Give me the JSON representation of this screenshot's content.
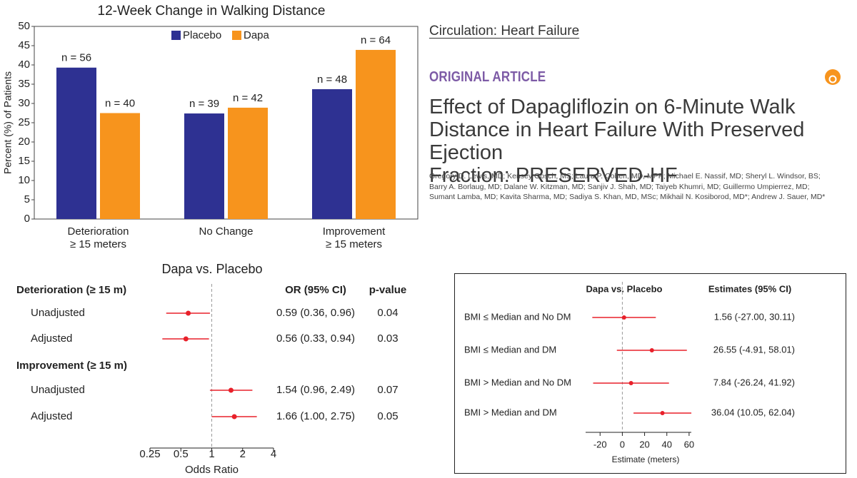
{
  "chart_data": [
    {
      "type": "bar",
      "title": "12-Week Change in Walking Distance",
      "y_label": "Percent (%) of Patients",
      "categories": [
        "Deterioration\n≥ 15  meters",
        "No Change",
        "Improvement\n≥ 15  meters"
      ],
      "series": [
        {
          "name": "Placebo",
          "color": "#2e3192",
          "values": [
            39.3,
            27.4,
            33.7
          ],
          "n_labels": [
            "n = 56",
            "n = 39",
            "n = 48"
          ]
        },
        {
          "name": "Dapa",
          "color": "#f7941d",
          "values": [
            27.5,
            28.9,
            43.9
          ],
          "n_labels": [
            "n = 40",
            "n = 42",
            "n = 64"
          ]
        }
      ],
      "ylim": [
        0,
        50
      ],
      "yticks": [
        0,
        5,
        10,
        15,
        20,
        25,
        30,
        35,
        40,
        45,
        50
      ],
      "legend": "top"
    },
    {
      "type": "forest",
      "title": "Dapa vs. Placebo",
      "estimate_header": "OR (95% CI)",
      "p_header": "p-value",
      "x_label": "Odds Ratio",
      "xscale": "log",
      "xlim": [
        0.25,
        4
      ],
      "xticks": [
        0.25,
        0.5,
        1,
        2,
        4
      ],
      "ref_line": 1,
      "color": "#e8202a",
      "groups": [
        {
          "label": "Deterioration (≥ 15 m)",
          "rows": [
            {
              "label": "Unadjusted",
              "estimate": 0.59,
              "lo": 0.36,
              "hi": 0.96,
              "ci_label": "0.59 (0.36, 0.96)",
              "p": 0.04
            },
            {
              "label": "Adjusted",
              "estimate": 0.56,
              "lo": 0.33,
              "hi": 0.94,
              "ci_label": "0.56 (0.33, 0.94)",
              "p": 0.03
            }
          ]
        },
        {
          "label": "Improvement (≥ 15 m)",
          "rows": [
            {
              "label": "Unadjusted",
              "estimate": 1.54,
              "lo": 0.96,
              "hi": 2.49,
              "ci_label": "1.54 (0.96, 2.49)",
              "p": 0.07
            },
            {
              "label": "Adjusted",
              "estimate": 1.66,
              "lo": 1.0,
              "hi": 2.75,
              "ci_label": "1.66 (1.00, 2.75)",
              "p": 0.05
            }
          ]
        }
      ]
    },
    {
      "type": "forest",
      "title": "Dapa vs. Placebo",
      "estimate_header": "Estimates (95% CI)",
      "x_label": "Estimate (meters)",
      "xlim": [
        -33,
        62
      ],
      "xticks": [
        -20,
        0,
        20,
        40,
        60
      ],
      "ref_line": 0,
      "color": "#e8202a",
      "groups": [
        {
          "rows": [
            {
              "label": "BMI ≤ Median and No DM",
              "estimate": 1.56,
              "lo": -27.0,
              "hi": 30.11,
              "ci_label": "1.56 (-27.00, 30.11)"
            },
            {
              "label": "BMI ≤ Median and DM",
              "estimate": 26.55,
              "lo": -4.91,
              "hi": 58.01,
              "ci_label": "26.55 (-4.91, 58.01)"
            },
            {
              "label": "BMI > Median and No DM",
              "estimate": 7.84,
              "lo": -26.24,
              "hi": 41.92,
              "ci_label": "7.84 (-26.24, 41.92)"
            },
            {
              "label": "BMI > Median and DM",
              "estimate": 36.04,
              "lo": 10.05,
              "hi": 62.04,
              "ci_label": "36.04 (10.05, 62.04)"
            }
          ]
        }
      ]
    }
  ],
  "article": {
    "journal": "Circulation: Heart Failure",
    "label": "ORIGINAL ARTICLE",
    "title": "Effect of Dapagliflozin on 6-Minute Walk\nDistance in Heart Failure With Preserved Ejection\nFraction: PRESERVED-HF",
    "authors": "Gregory D. Lewis, MD; Kensey Gosch, MS; Laura P. Cohen, MD, MPP; Michael E. Nassif, MD; Sheryl L. Windsor, BS;\nBarry A. Borlaug, MD; Dalane W. Kitzman, MD; Sanjiv J. Shah, MD; Taiyeb Khumri, MD; Guillermo Umpierrez, MD;\nSumant Lamba, MD; Kavita Sharma, MD; Sadiya S. Khan, MD, MSc; Mikhail N. Kosiborod, MD*; Andrew J. Sauer, MD*"
  }
}
